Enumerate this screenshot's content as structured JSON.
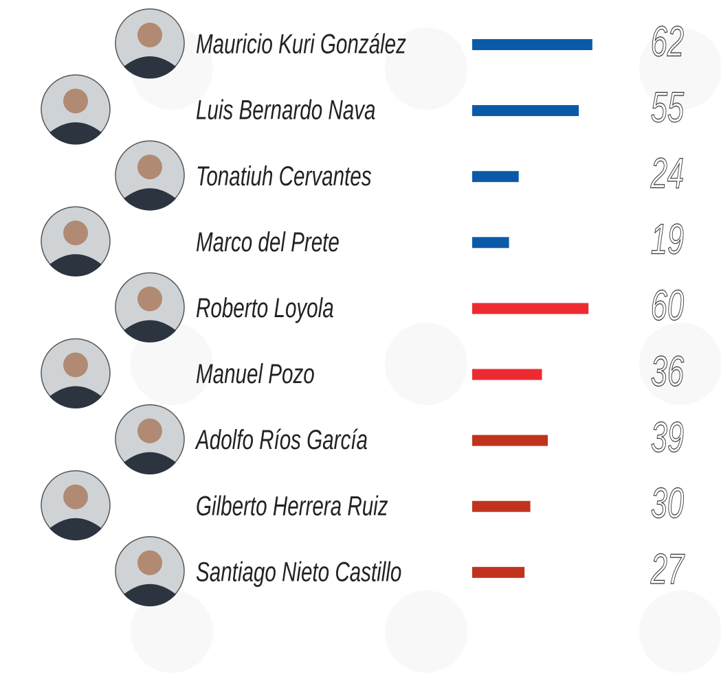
{
  "chart_data": {
    "type": "bar",
    "categories": [
      "Mauricio Kuri González",
      "Luis Bernardo Nava",
      "Tonatiuh Cervantes",
      "Marco del Prete",
      "Roberto Loyola",
      "Manuel Pozo",
      "Adolfo Ríos García",
      "Gilberto Herrera Ruiz",
      "Santiago Nieto Castillo"
    ],
    "values": [
      62,
      55,
      24,
      19,
      60,
      36,
      39,
      30,
      27
    ],
    "colors": [
      "#0b5aa7",
      "#0b5aa7",
      "#0b5aa7",
      "#0b5aa7",
      "#ee2a31",
      "#ee2a31",
      "#c1331d",
      "#c1331d",
      "#c1331d"
    ]
  }
}
